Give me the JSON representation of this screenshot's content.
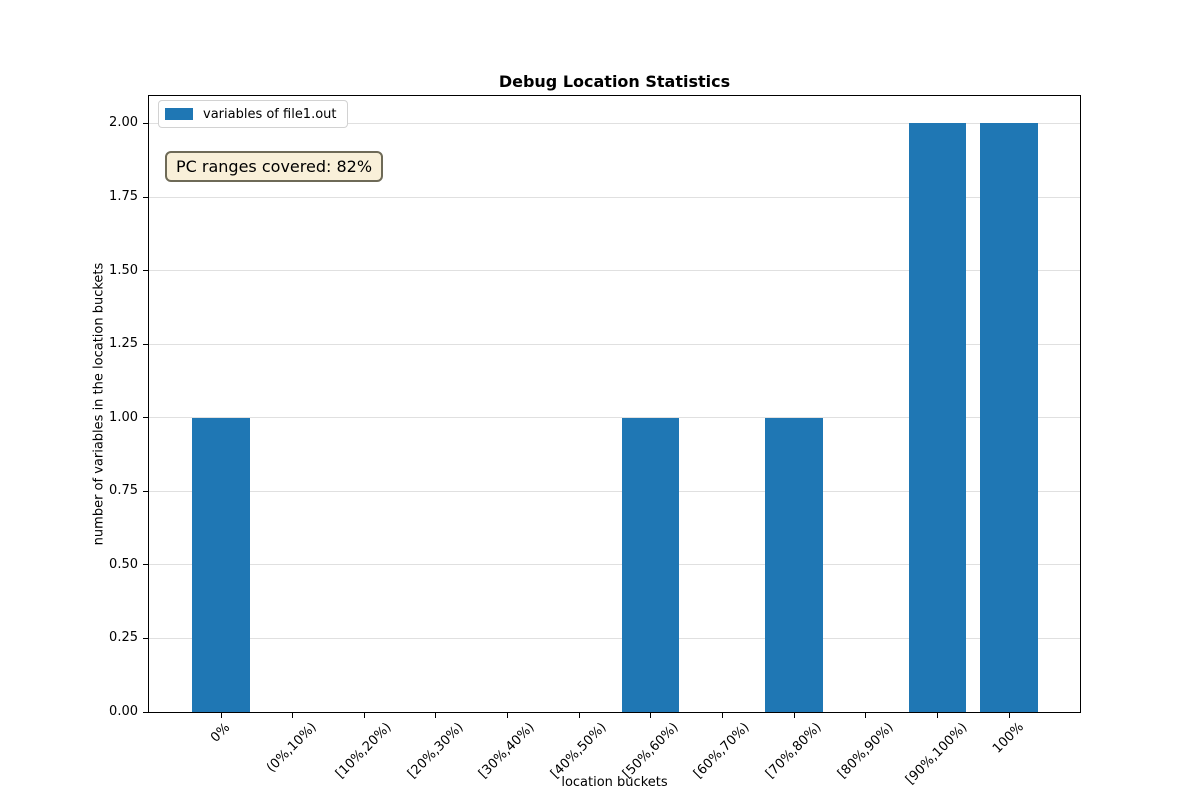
{
  "title": "Debug Location Statistics",
  "chart_data": {
    "type": "bar",
    "title": "Debug Location Statistics",
    "categories": [
      "0%",
      "(0%,10%)",
      "[10%,20%)",
      "[20%,30%)",
      "[30%,40%)",
      "[40%,50%)",
      "[50%,60%)",
      "[60%,70%)",
      "[70%,80%)",
      "[80%,90%)",
      "[90%,100%)",
      "100%"
    ],
    "series": [
      {
        "name": "variables of file1.out",
        "values": [
          1,
          0,
          0,
          0,
          0,
          0,
          1,
          0,
          1,
          0,
          2,
          2
        ]
      }
    ],
    "xlabel": "location buckets",
    "ylabel": "number of variables in the location buckets",
    "ylim": [
      0,
      2.1
    ],
    "yticks": [
      0,
      0.25,
      0.5,
      0.75,
      1.0,
      1.25,
      1.5,
      1.75,
      2.0
    ],
    "ytick_labels": [
      "0.00",
      "0.25",
      "0.50",
      "0.75",
      "1.00",
      "1.25",
      "1.50",
      "1.75",
      "2.00"
    ],
    "bar_color": "#1f77b4",
    "grid": "horizontal",
    "grid_color": "#e0e0e0",
    "legend_position": "upper left",
    "annotation": "PC ranges covered: 82%"
  },
  "legend": {
    "label": "variables of file1.out",
    "swatch_color": "#1f77b4"
  },
  "annotation": {
    "text": "PC ranges covered: 82%",
    "bg_color": "#f9f0d9",
    "border_color": "#6e6a57"
  }
}
